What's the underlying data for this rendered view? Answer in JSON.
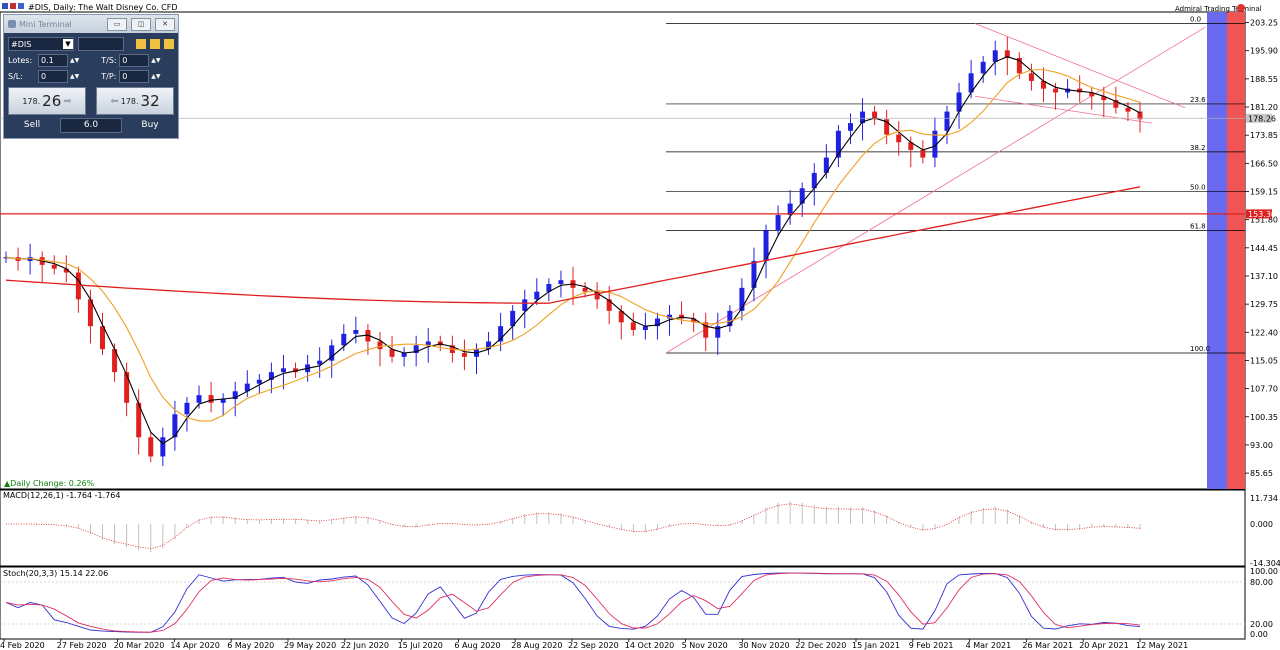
{
  "window": {
    "title": "#DIS, Daily:  The Walt Disney Co. CFD"
  },
  "mini_terminal": {
    "title": "Mini Terminal",
    "symbol": "#DIS",
    "lots_label": "Lotes:",
    "lots_value": "0.1",
    "ts_label": "T/S:",
    "ts_value": "0",
    "sl_label": "S/L:",
    "sl_value": "0",
    "tp_label": "T/P:",
    "tp_value": "0",
    "sell_price_small": "178.",
    "sell_price_big": "26",
    "buy_price_small": "178.",
    "buy_price_big": "32",
    "sell_label": "Sell",
    "buy_label": "Buy",
    "spread": "6.0",
    "minimize": "▭",
    "restore": "◫",
    "close": "✕"
  },
  "daily_change": "▲Daily Change:  0.26%",
  "watermark": "Admiral Trading Terminal",
  "colors": {
    "ma_short": "#000000",
    "ma_mid": "#f0a020",
    "ma_long": "#e02020",
    "bull": "#2020e0",
    "bear": "#e02020",
    "band_blue": "#6060f0",
    "band_red": "#f04848"
  },
  "chart_data": [
    {
      "type": "candlestick",
      "title": "#DIS, Daily:  The Walt Disney Co. CFD",
      "y_ticks": [
        "203.25",
        "195.90",
        "188.55",
        "181.20",
        "173.85",
        "166.50",
        "159.15",
        "151.80",
        "144.45",
        "137.10",
        "129.75",
        "122.40",
        "115.05",
        "107.70",
        "100.35",
        "93.00",
        "85.65"
      ],
      "x_ticks": [
        "4 Feb 2020",
        "27 Feb 2020",
        "20 Mar 2020",
        "14 Apr 2020",
        "6 May 2020",
        "29 May 2020",
        "22 Jun 2020",
        "15 Jul 2020",
        "6 Aug 2020",
        "28 Aug 2020",
        "22 Sep 2020",
        "14 Oct 2020",
        "5 Nov 2020",
        "30 Nov 2020",
        "22 Dec 2020",
        "15 Jan 2021",
        "9 Feb 2021",
        "4 Mar 2021",
        "26 Mar 2021",
        "20 Apr 2021",
        "12 May 2021"
      ],
      "ylim": [
        81.5,
        206
      ],
      "current_price": "178.26",
      "level_price": "153.30",
      "level_value": 153.3,
      "fib_levels": [
        {
          "label": "0.0",
          "value": 203.0
        },
        {
          "label": "23.6",
          "value": 182.0
        },
        {
          "label": "38.2",
          "value": 169.5
        },
        {
          "label": "50.0",
          "value": 159.2
        },
        {
          "label": "61.8",
          "value": 149.0
        },
        {
          "label": "100.0",
          "value": 117.0
        }
      ],
      "closes": [
        142,
        141,
        142,
        140,
        139,
        138,
        131,
        124,
        118,
        112,
        104,
        95,
        90,
        95,
        101,
        104,
        106,
        104,
        105,
        107,
        109,
        110,
        112,
        113,
        112,
        114,
        115,
        119,
        122,
        123,
        120,
        118,
        116,
        117,
        119,
        120,
        119,
        117,
        116,
        118,
        120,
        124,
        128,
        131,
        133,
        135,
        136,
        134,
        133,
        131,
        128,
        125,
        123,
        124,
        126,
        127,
        126,
        125,
        121,
        124,
        128,
        134,
        141,
        149,
        153,
        156,
        160,
        164,
        168,
        175,
        177,
        180,
        178,
        174,
        172,
        170,
        168,
        175,
        180,
        185,
        190,
        193,
        196,
        194,
        190,
        188,
        186,
        185,
        186,
        185,
        184,
        183,
        181,
        180,
        178
      ]
    },
    {
      "type": "macd",
      "title": "MACD(12,26,1) -1.764 -1.764",
      "y_ticks": [
        "11.734",
        "0.000",
        "-14.304"
      ]
    },
    {
      "type": "stochastic",
      "title": "Stoch(20,3,3) 15.14 22.06",
      "y_ticks": [
        "100.00",
        "80.00",
        "20.00",
        "0.00"
      ]
    }
  ]
}
